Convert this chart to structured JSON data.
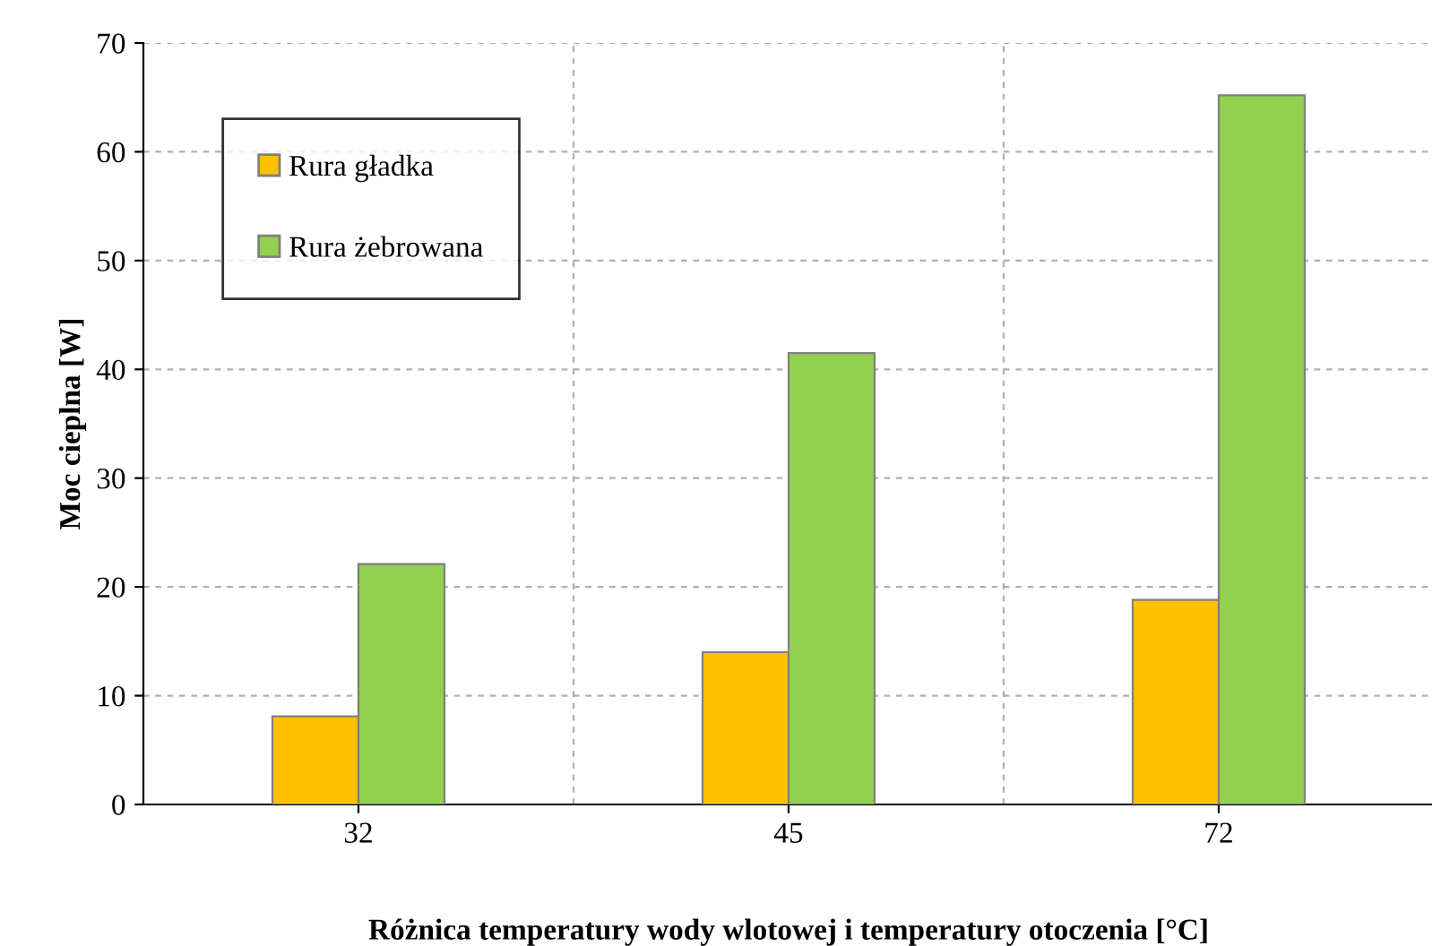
{
  "chart_data": {
    "type": "bar",
    "categories": [
      "32",
      "45",
      "72"
    ],
    "series": [
      {
        "name": "Rura gładka",
        "color": "#ffc000",
        "values": [
          8.1,
          14.0,
          18.8
        ]
      },
      {
        "name": "Rura żebrowana",
        "color": "#92d050",
        "values": [
          22.1,
          41.5,
          65.2
        ]
      }
    ],
    "xlabel": "Różnica temperatury wody wlotowej i temperatury otoczenia [°C]",
    "ylabel": "Moc cieplna [W]",
    "ylim": [
      0,
      70
    ],
    "yticks": [
      0,
      10,
      20,
      30,
      40,
      50,
      60,
      70
    ],
    "grid": true,
    "legend": "top left"
  }
}
